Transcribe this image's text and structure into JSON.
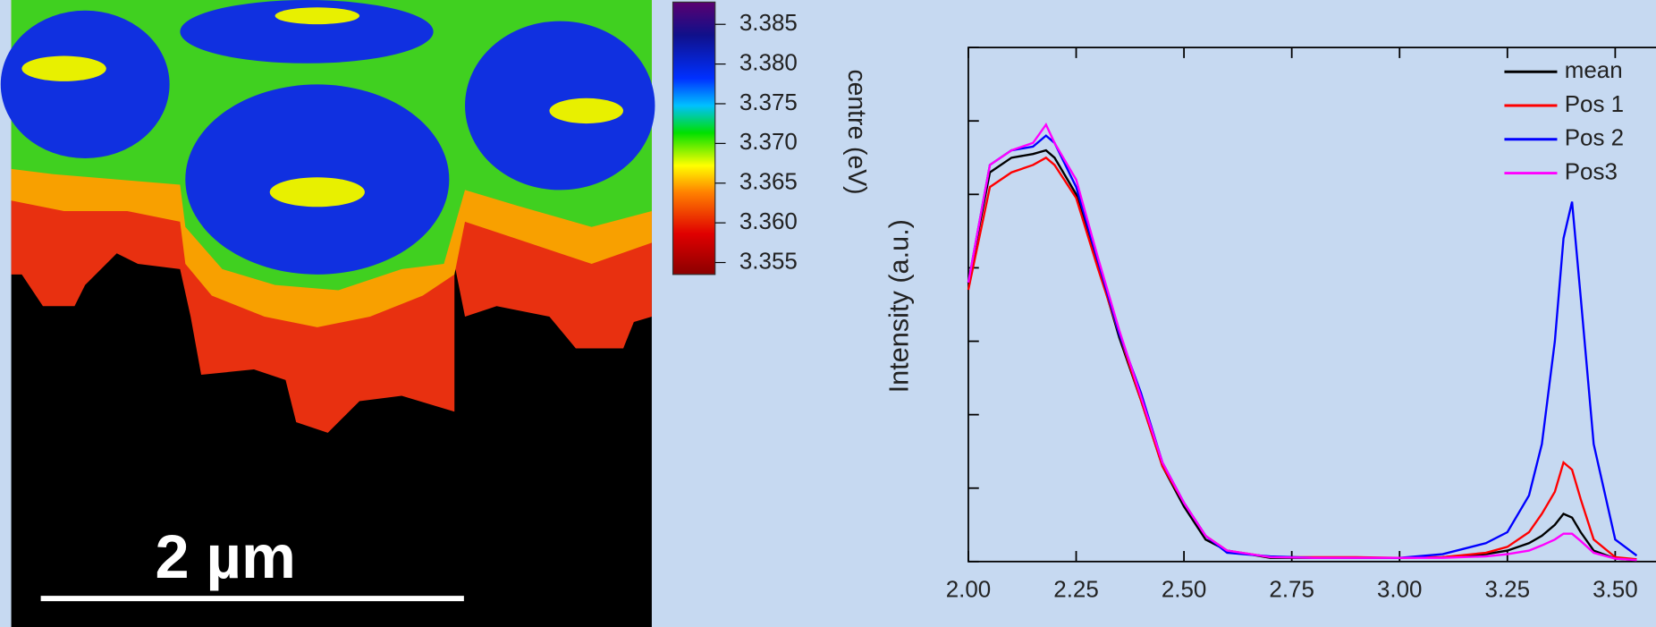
{
  "map": {
    "scale_bar": "2 µm"
  },
  "colorbar": {
    "label": "centre (eV)",
    "lim": [
      3.3535,
      3.3878
    ],
    "ticks": [
      {
        "value": 3.355,
        "label": "3.355"
      },
      {
        "value": 3.36,
        "label": "3.360"
      },
      {
        "value": 3.365,
        "label": "3.365"
      },
      {
        "value": 3.37,
        "label": "3.370"
      },
      {
        "value": 3.375,
        "label": "3.375"
      },
      {
        "value": 3.38,
        "label": "3.380"
      },
      {
        "value": 3.385,
        "label": "3.385"
      }
    ]
  },
  "chart_data": {
    "type": "line",
    "ylabel": "Intensity (a.u.)",
    "x": [
      2.0,
      2.05,
      2.1,
      2.15,
      2.18,
      2.2,
      2.25,
      2.3,
      2.35,
      2.4,
      2.45,
      2.5,
      2.55,
      2.6,
      2.7,
      2.8,
      2.9,
      3.0,
      3.1,
      3.2,
      3.25,
      3.3,
      3.33,
      3.36,
      3.38,
      3.4,
      3.42,
      3.45,
      3.5,
      3.55
    ],
    "series": [
      {
        "name": "mean",
        "color": "#000000",
        "values": [
          3.8,
          5.3,
          5.5,
          5.55,
          5.6,
          5.5,
          5.0,
          4.05,
          3.05,
          2.2,
          1.3,
          0.75,
          0.3,
          0.15,
          0.05,
          0.05,
          0.05,
          0.05,
          0.06,
          0.1,
          0.15,
          0.25,
          0.35,
          0.5,
          0.65,
          0.6,
          0.4,
          0.15,
          0.04,
          0.02
        ]
      },
      {
        "name": "Pos 1",
        "color": "#ff0000",
        "values": [
          3.7,
          5.1,
          5.3,
          5.4,
          5.5,
          5.4,
          4.95,
          4.0,
          3.1,
          2.2,
          1.3,
          0.8,
          0.35,
          0.15,
          0.06,
          0.06,
          0.06,
          0.05,
          0.06,
          0.12,
          0.2,
          0.4,
          0.65,
          0.95,
          1.35,
          1.25,
          0.85,
          0.3,
          0.06,
          0.03
        ]
      },
      {
        "name": "Pos 2",
        "color": "#0000ff",
        "values": [
          3.8,
          5.4,
          5.6,
          5.65,
          5.8,
          5.7,
          5.1,
          4.1,
          3.1,
          2.3,
          1.35,
          0.8,
          0.35,
          0.12,
          0.07,
          0.05,
          0.05,
          0.05,
          0.1,
          0.25,
          0.4,
          0.9,
          1.6,
          3.0,
          4.4,
          4.9,
          3.6,
          1.6,
          0.3,
          0.08
        ]
      },
      {
        "name": "Pos3",
        "color": "#ff00ff",
        "values": [
          3.8,
          5.4,
          5.6,
          5.7,
          5.95,
          5.7,
          5.2,
          4.15,
          3.15,
          2.25,
          1.35,
          0.8,
          0.35,
          0.15,
          0.06,
          0.05,
          0.05,
          0.05,
          0.05,
          0.07,
          0.1,
          0.15,
          0.22,
          0.3,
          0.38,
          0.38,
          0.28,
          0.12,
          0.04,
          0.02
        ]
      }
    ],
    "xlim": [
      2.0,
      3.6
    ],
    "xticks": [
      {
        "value": 2.0,
        "label": "2.00"
      },
      {
        "value": 2.25,
        "label": "2.25"
      },
      {
        "value": 2.5,
        "label": "2.50"
      },
      {
        "value": 2.75,
        "label": "2.75"
      },
      {
        "value": 3.0,
        "label": "3.00"
      },
      {
        "value": 3.25,
        "label": "3.25"
      },
      {
        "value": 3.5,
        "label": "3.50"
      }
    ],
    "ylim": [
      0,
      7
    ],
    "yticks": [
      0,
      1,
      2,
      3,
      4,
      5,
      6,
      7
    ],
    "legend": "upper right"
  }
}
